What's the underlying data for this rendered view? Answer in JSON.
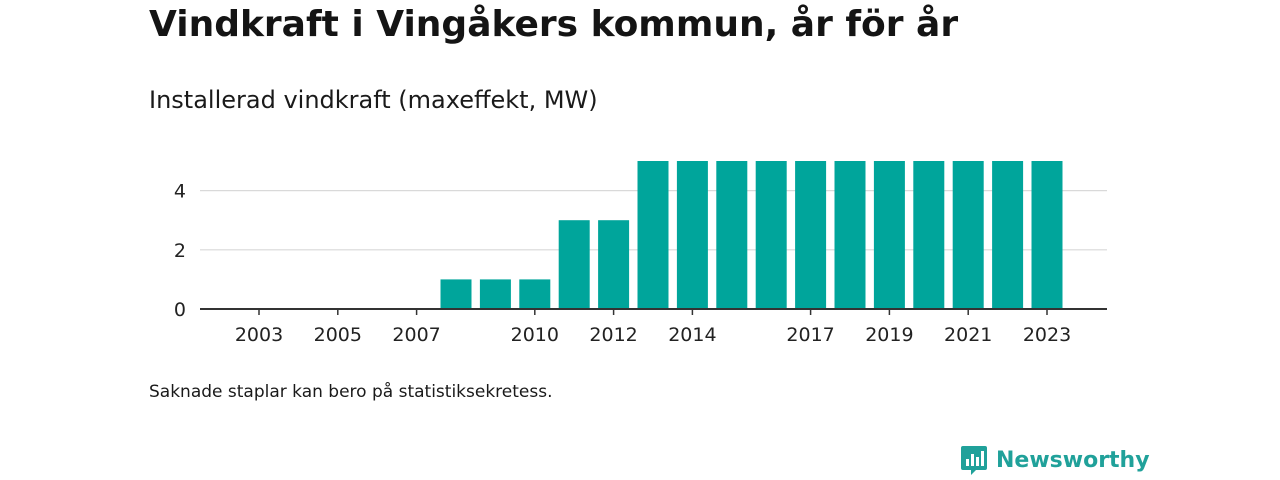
{
  "header": {
    "title": "Vindkraft i Vingåkers kommun, år för år",
    "subtitle": "Installerad vindkraft (maxeffekt, MW)"
  },
  "footer": {
    "note": "Saknade staplar kan bero på statistiksekretess.",
    "brand": "Newsworthy",
    "brand_icon": "newsworthy-logo-icon"
  },
  "colors": {
    "bar": "#00a59b",
    "grid": "#d9d9d9",
    "axis": "#333333",
    "brand": "#20a19a"
  },
  "chart_data": {
    "type": "bar",
    "categories": [
      "2003",
      "2004",
      "2005",
      "2006",
      "2007",
      "2008",
      "2009",
      "2010",
      "2011",
      "2012",
      "2013",
      "2014",
      "2015",
      "2016",
      "2017",
      "2018",
      "2019",
      "2020",
      "2021",
      "2022",
      "2023"
    ],
    "values": [
      0,
      0,
      0,
      0,
      0,
      1,
      1,
      1,
      3,
      3,
      5,
      5,
      5,
      5,
      5,
      5,
      5,
      5,
      5,
      5,
      5
    ],
    "x_tick_labels": [
      "2003",
      "2005",
      "2007",
      "2010",
      "2012",
      "2014",
      "2017",
      "2019",
      "2021",
      "2023"
    ],
    "y_ticks": [
      0,
      2,
      4
    ],
    "ylim": [
      0,
      5
    ],
    "grid": true,
    "legend": "none"
  }
}
